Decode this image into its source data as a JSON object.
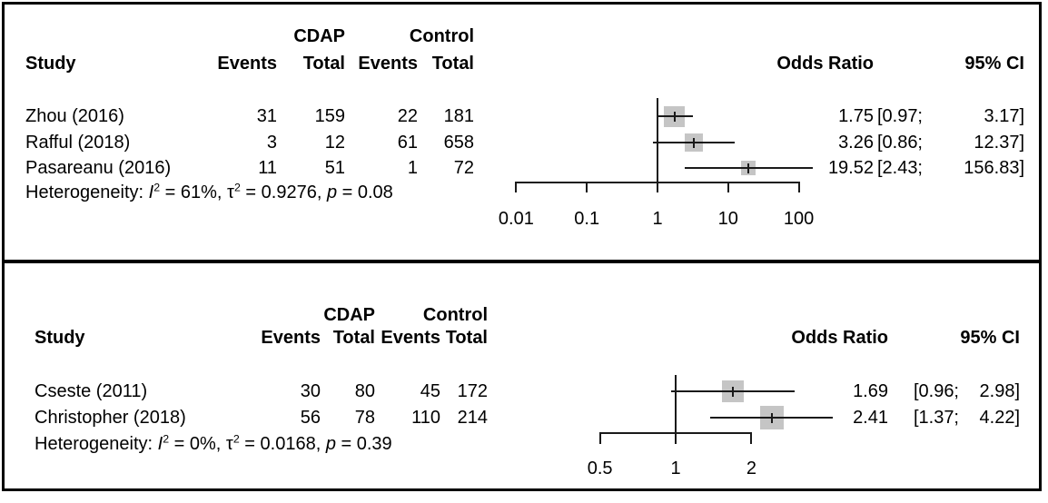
{
  "colors": {
    "background": "#ffffff",
    "panel_border": "#000000",
    "line": "#1a1a1a",
    "square_fill": "#c5c5c5",
    "text": "#000000"
  },
  "panels": [
    {
      "headers": {
        "study": "Study",
        "group1": "CDAP",
        "group2": "Control",
        "events1": "Events",
        "total1": "Total",
        "events2": "Events",
        "total2": "Total",
        "odds_ratio": "Odds Ratio",
        "ci": "95% CI"
      },
      "rows": [
        {
          "study": "Zhou (2016)",
          "e1": "31",
          "t1": "159",
          "e2": "22",
          "t2": "181",
          "or": "1.75",
          "ci_low": "[0.97;",
          "ci_high": "3.17]"
        },
        {
          "study": "Rafful (2018)",
          "e1": "3",
          "t1": "12",
          "e2": "61",
          "t2": "658",
          "or": "3.26",
          "ci_low": "[0.86;",
          "ci_high": "12.37]"
        },
        {
          "study": "Pasareanu (2016)",
          "e1": "11",
          "t1": "51",
          "e2": "1",
          "t2": "72",
          "or": "19.52",
          "ci_low": "[2.43;",
          "ci_high": "156.83]"
        }
      ],
      "heterogeneity_segments": [
        {
          "t": "Heterogeneity: "
        },
        {
          "t": "I",
          "i": true
        },
        {
          "t": "2",
          "sup": true
        },
        {
          "t": " = 61%, "
        },
        {
          "t": "τ"
        },
        {
          "t": "2",
          "sup": true
        },
        {
          "t": " = 0.9276, "
        },
        {
          "t": "p",
          "i": true
        },
        {
          "t": " = 0.08"
        }
      ],
      "axis_labels": [
        "0.01",
        "0.1",
        "1",
        "10",
        "100"
      ]
    },
    {
      "headers": {
        "study": "Study",
        "group1": "CDAP",
        "group2": "Control",
        "events1": "Events",
        "total1": "Total",
        "events2": "Events",
        "total2": "Total",
        "odds_ratio": "Odds Ratio",
        "ci": "95% CI"
      },
      "rows": [
        {
          "study": "Cseste (2011)",
          "e1": "30",
          "t1": "80",
          "e2": "45",
          "t2": "172",
          "or": "1.69",
          "ci_low": "[0.96;",
          "ci_high": "2.98]"
        },
        {
          "study": "Christopher (2018)",
          "e1": "56",
          "t1": "78",
          "e2": "110",
          "t2": "214",
          "or": "2.41",
          "ci_low": "[1.37;",
          "ci_high": "4.22]"
        }
      ],
      "heterogeneity_segments": [
        {
          "t": "Heterogeneity: "
        },
        {
          "t": "I",
          "i": true
        },
        {
          "t": "2",
          "sup": true
        },
        {
          "t": " = 0%, "
        },
        {
          "t": "τ"
        },
        {
          "t": "2",
          "sup": true
        },
        {
          "t": " = 0.0168, "
        },
        {
          "t": "p",
          "i": true
        },
        {
          "t": " = 0.39"
        }
      ],
      "axis_labels": [
        "0.5",
        "1",
        "2"
      ]
    }
  ],
  "chart_data": [
    {
      "type": "forest",
      "effect_measure": "Odds Ratio",
      "groups": [
        "CDAP",
        "Control"
      ],
      "x_scale": "log10",
      "x_ticks": [
        0.01,
        0.1,
        1,
        10,
        100
      ],
      "x_range": [
        0.01,
        100
      ],
      "ref_line": 1,
      "studies": [
        {
          "study": "Zhou (2016)",
          "cdap_events": 31,
          "cdap_total": 159,
          "control_events": 22,
          "control_total": 181,
          "odds_ratio": 1.75,
          "ci_low": 0.97,
          "ci_high": 3.17
        },
        {
          "study": "Rafful (2018)",
          "cdap_events": 3,
          "cdap_total": 12,
          "control_events": 61,
          "control_total": 658,
          "odds_ratio": 3.26,
          "ci_low": 0.86,
          "ci_high": 12.37
        },
        {
          "study": "Pasareanu (2016)",
          "cdap_events": 11,
          "cdap_total": 51,
          "control_events": 1,
          "control_total": 72,
          "odds_ratio": 19.52,
          "ci_low": 2.43,
          "ci_high": 156.83
        }
      ],
      "heterogeneity": {
        "I2": "61%",
        "tau2": 0.9276,
        "p": 0.08
      },
      "legend": "none",
      "grid": false
    },
    {
      "type": "forest",
      "effect_measure": "Odds Ratio",
      "groups": [
        "CDAP",
        "Control"
      ],
      "x_scale": "log10",
      "x_ticks": [
        0.5,
        1,
        2
      ],
      "x_range": [
        0.5,
        2
      ],
      "ref_line": 1,
      "studies": [
        {
          "study": "Cseste (2011)",
          "cdap_events": 30,
          "cdap_total": 80,
          "control_events": 45,
          "control_total": 172,
          "odds_ratio": 1.69,
          "ci_low": 0.96,
          "ci_high": 2.98
        },
        {
          "study": "Christopher (2018)",
          "cdap_events": 56,
          "cdap_total": 78,
          "control_events": 110,
          "control_total": 214,
          "odds_ratio": 2.41,
          "ci_low": 1.37,
          "ci_high": 4.22
        }
      ],
      "heterogeneity": {
        "I2": "0%",
        "tau2": 0.0168,
        "p": 0.39
      },
      "legend": "none",
      "grid": false
    }
  ]
}
